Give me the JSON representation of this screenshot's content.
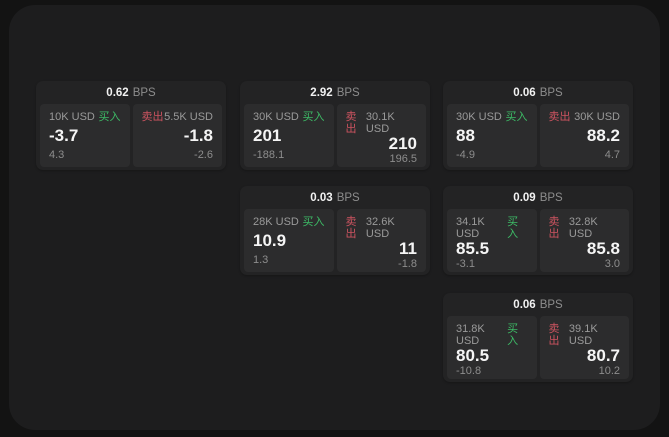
{
  "theme": {
    "page_bg": "#131313",
    "panel_bg": "#1d1d1e",
    "card_bg": "#232324",
    "tile_bg": "#2c2c2d",
    "accent_buy_green": "#3dbb66",
    "accent_sell_red": "#cd5360",
    "text_primary": "#f5f5f5",
    "text_secondary": "#8d8d8d"
  },
  "labels": {
    "bps_unit": "BPS",
    "buy": "买入",
    "sell": "卖出"
  },
  "cards": [
    {
      "bps": "0.62",
      "buy": {
        "amount": "10K USD",
        "price": "-3.7",
        "delta": "4.3"
      },
      "sell": {
        "amount": "5.5K USD",
        "price": "-1.8",
        "delta": "-2.6"
      }
    },
    {
      "bps": "2.92",
      "buy": {
        "amount": "30K USD",
        "price": "201",
        "delta": "-188.1"
      },
      "sell": {
        "amount": "30.1K USD",
        "price": "210",
        "delta": "196.5"
      }
    },
    {
      "bps": "0.06",
      "buy": {
        "amount": "30K USD",
        "price": "88",
        "delta": "-4.9"
      },
      "sell": {
        "amount": "30K USD",
        "price": "88.2",
        "delta": "4.7"
      }
    },
    {
      "bps": "0.03",
      "buy": {
        "amount": "28K USD",
        "price": "10.9",
        "delta": "1.3"
      },
      "sell": {
        "amount": "32.6K USD",
        "price": "11",
        "delta": "-1.8"
      }
    },
    {
      "bps": "0.09",
      "buy": {
        "amount": "34.1K USD",
        "price": "85.5",
        "delta": "-3.1"
      },
      "sell": {
        "amount": "32.8K USD",
        "price": "85.8",
        "delta": "3.0"
      }
    },
    {
      "bps": "0.06",
      "buy": {
        "amount": "31.8K USD",
        "price": "80.5",
        "delta": "-10.8"
      },
      "sell": {
        "amount": "39.1K USD",
        "price": "80.7",
        "delta": "10.2"
      }
    }
  ]
}
